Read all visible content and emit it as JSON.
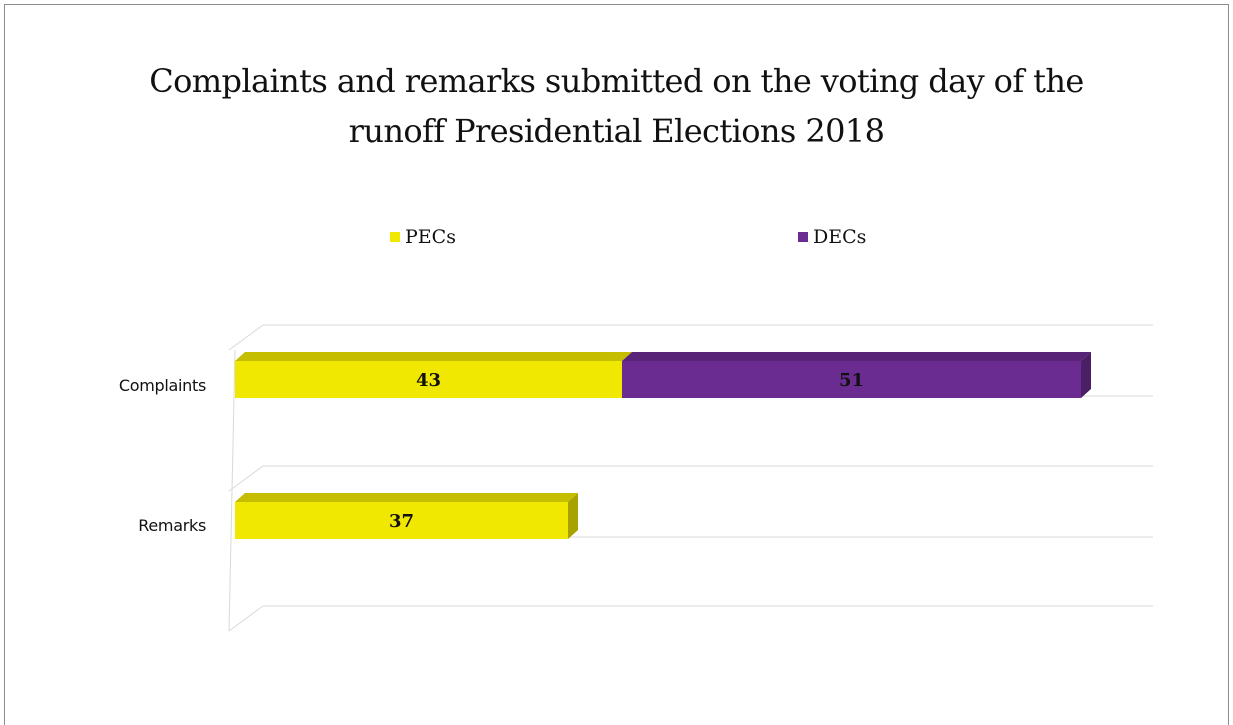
{
  "chart_data": {
    "type": "bar",
    "orientation": "horizontal",
    "stacked": true,
    "three_d": true,
    "title": "Complaints and remarks submitted on the voting day of the runoff Presidential Elections 2018",
    "title_lines": [
      "Complaints and remarks submitted on the voting day of the",
      "runoff Presidential Elections 2018"
    ],
    "categories": [
      "Complaints",
      "Remarks"
    ],
    "series": [
      {
        "name": "PECs",
        "values": [
          43,
          37
        ],
        "color": "#f0e800"
      },
      {
        "name": "DECs",
        "values": [
          51,
          null
        ],
        "color": "#6b2c91"
      }
    ],
    "data_labels": [
      [
        "43",
        "37"
      ],
      [
        "51",
        ""
      ]
    ],
    "xlim": [
      0,
      100
    ],
    "legend_position": "top",
    "grid": true
  }
}
